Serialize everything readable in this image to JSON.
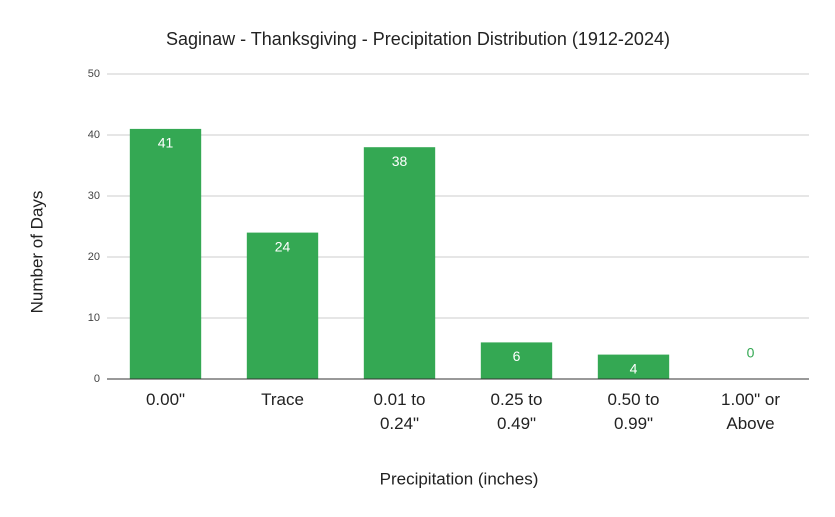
{
  "chart_data": {
    "type": "bar",
    "title": "Saginaw - Thanksgiving - Precipitation Distribution (1912-2024)",
    "x_label": "Precipitation (inches)",
    "y_label": "Number of Days",
    "categories": [
      "0.00\"",
      "Trace",
      "0.01 to 0.24\"",
      "0.25 to 0.49\"",
      "0.50 to 0.99\"",
      "1.00\" or Above"
    ],
    "values": [
      41,
      24,
      38,
      6,
      4,
      0
    ],
    "color": "#34a853",
    "ylim": [
      0,
      50
    ],
    "yticks": [
      0,
      10,
      20,
      30,
      40,
      50
    ],
    "grid": true
  }
}
